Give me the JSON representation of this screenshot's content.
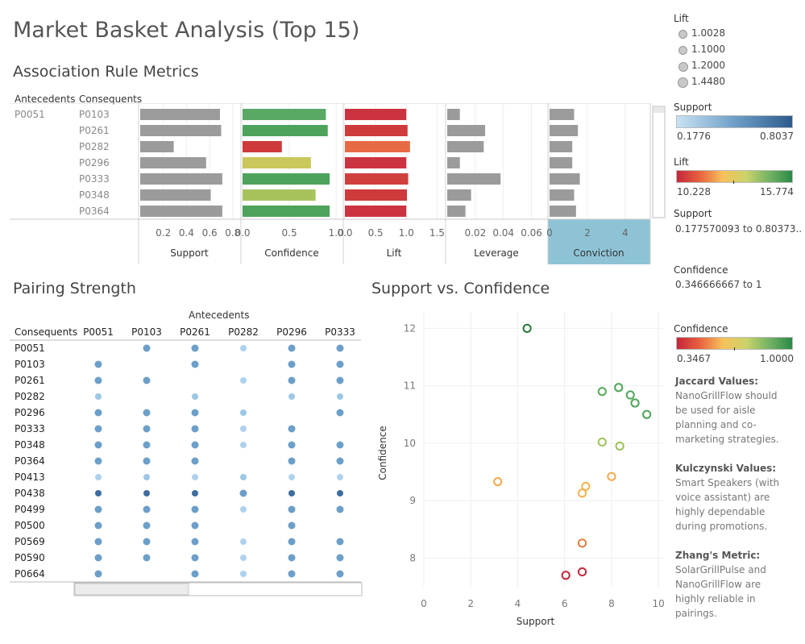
{
  "title": "Market Basket Analysis (Top 15)",
  "metrics": {
    "title": "Association Rule Metrics",
    "col_antecedents": "Antecedents",
    "col_consequents": "Consequents",
    "antecedent": "P0051",
    "rows": [
      {
        "consequent": "P0103",
        "support": 0.69,
        "confidence": 0.89,
        "lift": 1.0,
        "leverage": 0.009,
        "conviction": 1.3,
        "conf_color": "#59a965",
        "lift_color": "#cc3340"
      },
      {
        "consequent": "P0261",
        "support": 0.7,
        "confidence": 0.91,
        "lift": 1.02,
        "leverage": 0.027,
        "conviction": 1.5,
        "conf_color": "#4da35b",
        "lift_color": "#cf3a3c"
      },
      {
        "consequent": "P0282",
        "support": 0.29,
        "confidence": 0.42,
        "lift": 1.06,
        "leverage": 0.026,
        "conviction": 1.2,
        "conf_color": "#cf3a3c",
        "lift_color": "#e86a44"
      },
      {
        "consequent": "P0296",
        "support": 0.57,
        "confidence": 0.73,
        "lift": 1.0,
        "leverage": 0.009,
        "conviction": 1.2,
        "conf_color": "#c9c85a",
        "lift_color": "#cc3340"
      },
      {
        "consequent": "P0333",
        "support": 0.71,
        "confidence": 0.93,
        "lift": 1.03,
        "leverage": 0.038,
        "conviction": 1.6,
        "conf_color": "#4da35b",
        "lift_color": "#d0403d"
      },
      {
        "consequent": "P0348",
        "support": 0.61,
        "confidence": 0.78,
        "lift": 1.01,
        "leverage": 0.017,
        "conviction": 1.3,
        "conf_color": "#a8c35e",
        "lift_color": "#cf3a3c"
      },
      {
        "consequent": "P0364",
        "support": 0.71,
        "confidence": 0.93,
        "lift": 1.0,
        "leverage": 0.013,
        "conviction": 1.4,
        "conf_color": "#4da35b",
        "lift_color": "#cc3340"
      }
    ],
    "axes": [
      {
        "name": "Support",
        "ticks": [
          "0.2",
          "0.4",
          "0.6",
          "0.8"
        ],
        "range": [
          0,
          0.85
        ]
      },
      {
        "name": "Confidence",
        "ticks": [
          "0.0",
          "0.5",
          "1.0"
        ],
        "range": [
          0,
          1.05
        ]
      },
      {
        "name": "Lift",
        "ticks": [
          "0.0",
          "0.5",
          "1.0",
          "1.5"
        ],
        "range": [
          0,
          1.6
        ]
      },
      {
        "name": "Leverage",
        "ticks": [
          "0.02",
          "0.04",
          "0.06"
        ],
        "range": [
          0,
          0.07
        ]
      },
      {
        "name": "Conviction",
        "ticks": [
          "0",
          "2",
          "4"
        ],
        "range": [
          0,
          5.2
        ]
      }
    ]
  },
  "pairing": {
    "title": "Pairing Strength",
    "antecedents_label": "Antecedents",
    "consequents_label": "Consequents",
    "columns": [
      "P0051",
      "P0103",
      "P0261",
      "P0282",
      "P0296",
      "P0333"
    ],
    "rows": [
      "P0051",
      "P0103",
      "P0261",
      "P0282",
      "P0296",
      "P0333",
      "P0348",
      "P0364",
      "P0413",
      "P0438",
      "P0499",
      "P0500",
      "P0569",
      "P0590",
      "P0664"
    ],
    "cells": [
      [
        0,
        3,
        3,
        2,
        3,
        3
      ],
      [
        3,
        0,
        3,
        0,
        3,
        3
      ],
      [
        3,
        3,
        0,
        2,
        3,
        3
      ],
      [
        1,
        0,
        1,
        0,
        1,
        1
      ],
      [
        3,
        3,
        3,
        1,
        0,
        3
      ],
      [
        3,
        3,
        3,
        2,
        3,
        0
      ],
      [
        3,
        3,
        3,
        2,
        3,
        3
      ],
      [
        3,
        3,
        3,
        0,
        3,
        3
      ],
      [
        2,
        1,
        2,
        1,
        2,
        2
      ],
      [
        4,
        4,
        4,
        3,
        4,
        4
      ],
      [
        3,
        3,
        3,
        2,
        3,
        3
      ],
      [
        3,
        3,
        3,
        0,
        3,
        0
      ],
      [
        3,
        3,
        3,
        2,
        3,
        3
      ],
      [
        3,
        3,
        3,
        2,
        3,
        3
      ],
      [
        3,
        0,
        3,
        2,
        3,
        3
      ]
    ],
    "shade_colors": [
      "none",
      "#9cc8e6",
      "#aed2ee",
      "#6c9fc9",
      "#3e6e9f",
      "#2d5a8a"
    ]
  },
  "scatter": {
    "title": "Support vs. Confidence",
    "xlabel": "Support",
    "ylabel": "Confidence",
    "xticks": [
      "0",
      "2",
      "4",
      "6",
      "8",
      "10"
    ],
    "yticks": [
      "8",
      "9",
      "10",
      "11",
      "12"
    ],
    "xlim": [
      0,
      10.2
    ],
    "ylim": [
      7.5,
      12.3
    ],
    "points": [
      {
        "x": 4.4,
        "y": 12.0,
        "color": "#2b7a3a"
      },
      {
        "x": 8.3,
        "y": 10.97,
        "color": "#4fa55a"
      },
      {
        "x": 8.8,
        "y": 10.84,
        "color": "#4fa55a"
      },
      {
        "x": 7.6,
        "y": 10.9,
        "color": "#5aab5d"
      },
      {
        "x": 9.0,
        "y": 10.7,
        "color": "#4fa55a"
      },
      {
        "x": 9.5,
        "y": 10.5,
        "color": "#4fa55a"
      },
      {
        "x": 7.6,
        "y": 10.02,
        "color": "#a0c45a"
      },
      {
        "x": 8.35,
        "y": 9.95,
        "color": "#9cc15b"
      },
      {
        "x": 8.0,
        "y": 9.42,
        "color": "#f3a84c"
      },
      {
        "x": 3.15,
        "y": 9.33,
        "color": "#f3a84c"
      },
      {
        "x": 6.9,
        "y": 9.25,
        "color": "#f5b24f"
      },
      {
        "x": 6.75,
        "y": 9.13,
        "color": "#f5b24f"
      },
      {
        "x": 6.75,
        "y": 8.26,
        "color": "#e57d3e"
      },
      {
        "x": 6.75,
        "y": 7.76,
        "color": "#c42a3c"
      },
      {
        "x": 6.05,
        "y": 7.7,
        "color": "#c42a3c"
      }
    ]
  },
  "legends": {
    "lift_size": {
      "title": "Lift",
      "items": [
        "1.0028",
        "1.1000",
        "1.2000",
        "1.4480"
      ]
    },
    "support_color": {
      "title": "Support",
      "min": "0.1776",
      "max": "0.8037",
      "from": "#c7e2f3",
      "to": "#2e5b8c"
    },
    "lift_color": {
      "title": "Lift",
      "min": "10.228",
      "max": "15.774"
    },
    "support_filter": {
      "title": "Support",
      "value": "0.177570093 to 0.80373.."
    },
    "confidence_filter": {
      "title": "Confidence",
      "value": "0.346666667 to 1"
    },
    "confidence_color": {
      "title": "Confidence",
      "min": "0.3467",
      "max": "1.0000"
    }
  },
  "notes": [
    {
      "head": "Jaccard Values:",
      "text": "NanoGrillFlow should be used for aisle planning and co-marketing strategies."
    },
    {
      "head": "Kulczynski Values:",
      "text": "Smart Speakers (with voice assistant) are highly dependable during promotions."
    },
    {
      "head": "Zhang's Metric:",
      "text": "SolarGrillPulse and NanoGrillFlow are highly reliable in pairings."
    }
  ]
}
